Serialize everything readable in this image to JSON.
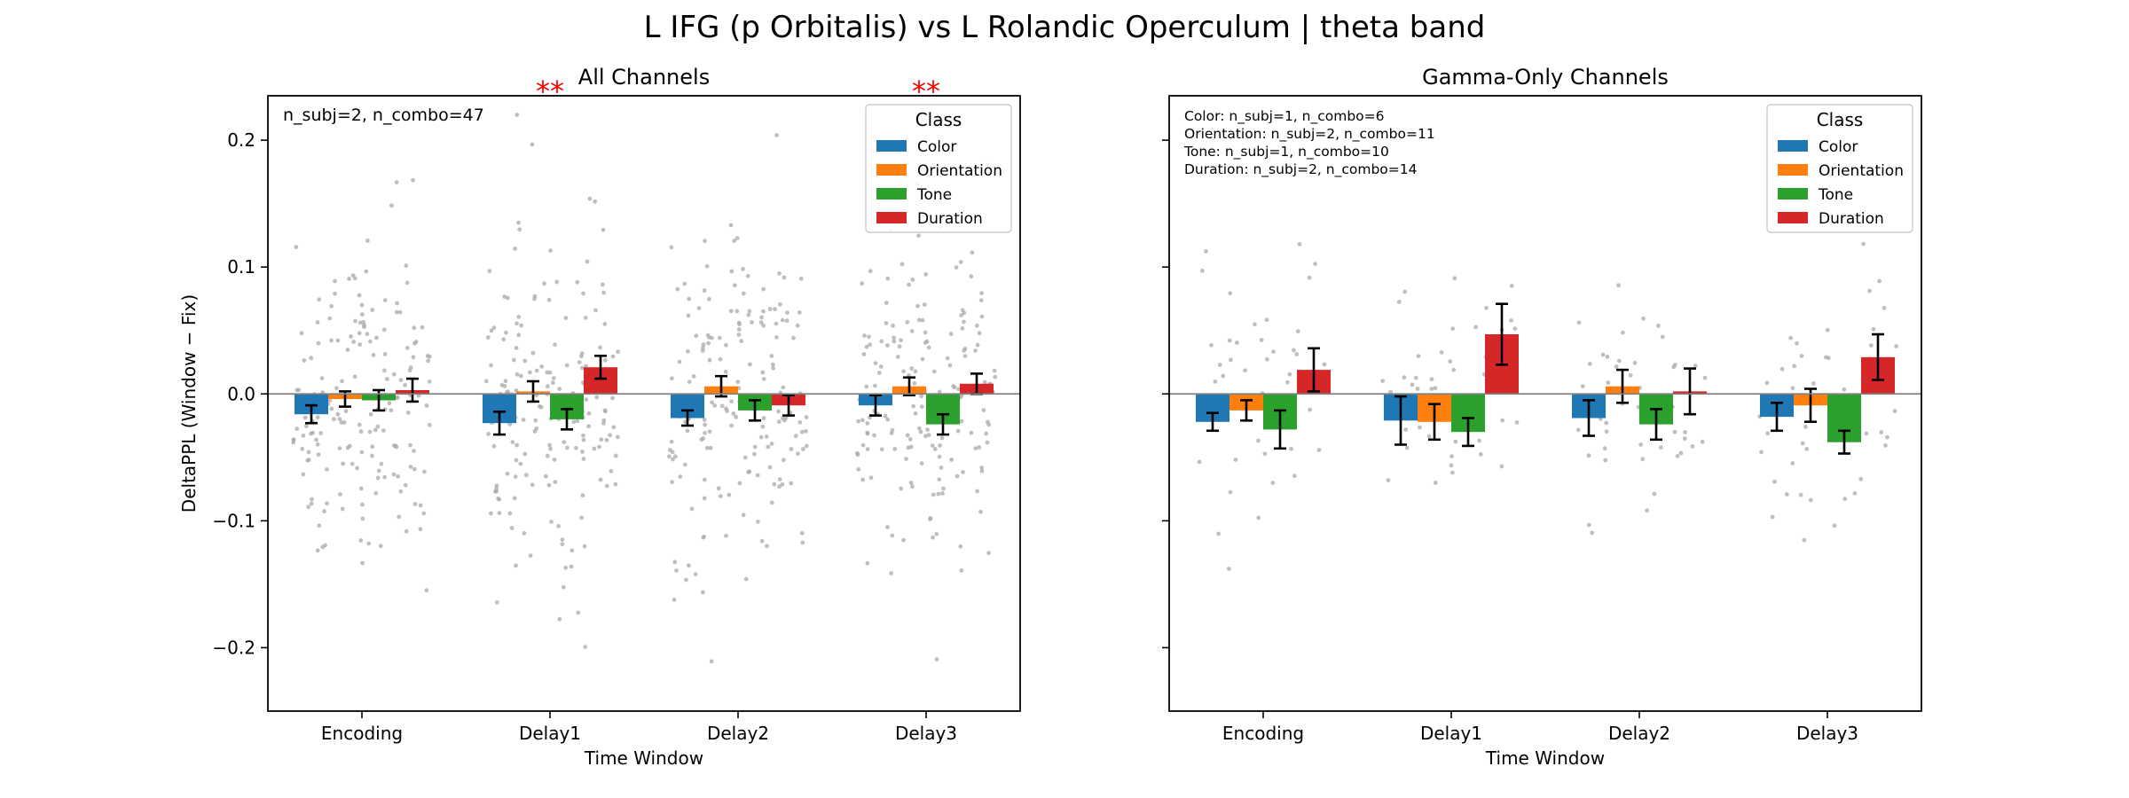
{
  "suptitle": "L IFG (p Orbitalis) vs L Rolandic Operculum  |  theta band",
  "colors": {
    "Color": "#1f77b4",
    "Orientation": "#ff7f0e",
    "Tone": "#2ca02c",
    "Duration": "#d62728",
    "points": "#aaaaaa",
    "significance": "#ff0000"
  },
  "chart_data": [
    {
      "type": "bar",
      "title": "All Channels",
      "xlabel": "Time Window",
      "ylabel": "DeltaPPL (Window − Fix)",
      "categories": [
        "Encoding",
        "Delay1",
        "Delay2",
        "Delay3"
      ],
      "ylim": [
        -0.25,
        0.235
      ],
      "yticks": [
        -0.2,
        -0.1,
        0.0,
        0.1,
        0.2
      ],
      "ytick_labels": [
        "−0.2",
        "−0.1",
        "0.0",
        "0.1",
        "0.2"
      ],
      "legend": {
        "title": "Class",
        "placement": "upper right",
        "entries": [
          "Color",
          "Orientation",
          "Tone",
          "Duration"
        ]
      },
      "annotations": [
        "n_subj=2, n_combo=47"
      ],
      "significance": [
        {
          "category": "Delay1",
          "label": "**"
        },
        {
          "category": "Delay3",
          "label": "**"
        }
      ],
      "series": [
        {
          "name": "Color",
          "values": [
            -0.016,
            -0.023,
            -0.019,
            -0.009
          ],
          "errors": [
            0.007,
            0.009,
            0.006,
            0.008
          ]
        },
        {
          "name": "Orientation",
          "values": [
            -0.004,
            0.002,
            0.006,
            0.006
          ],
          "errors": [
            0.006,
            0.008,
            0.008,
            0.007
          ]
        },
        {
          "name": "Tone",
          "values": [
            -0.005,
            -0.02,
            -0.013,
            -0.024
          ],
          "errors": [
            0.008,
            0.008,
            0.008,
            0.008
          ]
        },
        {
          "name": "Duration",
          "values": [
            0.003,
            0.021,
            -0.009,
            0.008
          ],
          "errors": [
            0.009,
            0.009,
            0.008,
            0.008
          ]
        }
      ],
      "grid": false
    },
    {
      "type": "bar",
      "title": "Gamma-Only Channels",
      "xlabel": "Time Window",
      "ylabel": "",
      "categories": [
        "Encoding",
        "Delay1",
        "Delay2",
        "Delay3"
      ],
      "ylim": [
        -0.25,
        0.235
      ],
      "yticks": [
        -0.2,
        -0.1,
        0.0,
        0.1,
        0.2
      ],
      "legend": {
        "title": "Class",
        "placement": "upper right",
        "entries": [
          "Color",
          "Orientation",
          "Tone",
          "Duration"
        ]
      },
      "annotations": [
        "Color: n_subj=1, n_combo=6",
        "Orientation: n_subj=2, n_combo=11",
        "Tone: n_subj=1, n_combo=10",
        "Duration: n_subj=2, n_combo=14"
      ],
      "significance": [],
      "series": [
        {
          "name": "Color",
          "values": [
            -0.022,
            -0.021,
            -0.019,
            -0.018
          ],
          "errors": [
            0.007,
            0.019,
            0.014,
            0.011
          ]
        },
        {
          "name": "Orientation",
          "values": [
            -0.013,
            -0.022,
            0.006,
            -0.009
          ],
          "errors": [
            0.008,
            0.014,
            0.013,
            0.013
          ]
        },
        {
          "name": "Tone",
          "values": [
            -0.028,
            -0.03,
            -0.024,
            -0.038
          ],
          "errors": [
            0.015,
            0.011,
            0.012,
            0.009
          ]
        },
        {
          "name": "Duration",
          "values": [
            0.019,
            0.047,
            0.002,
            0.029
          ],
          "errors": [
            0.017,
            0.024,
            0.018,
            0.018
          ]
        }
      ],
      "grid": false
    }
  ]
}
